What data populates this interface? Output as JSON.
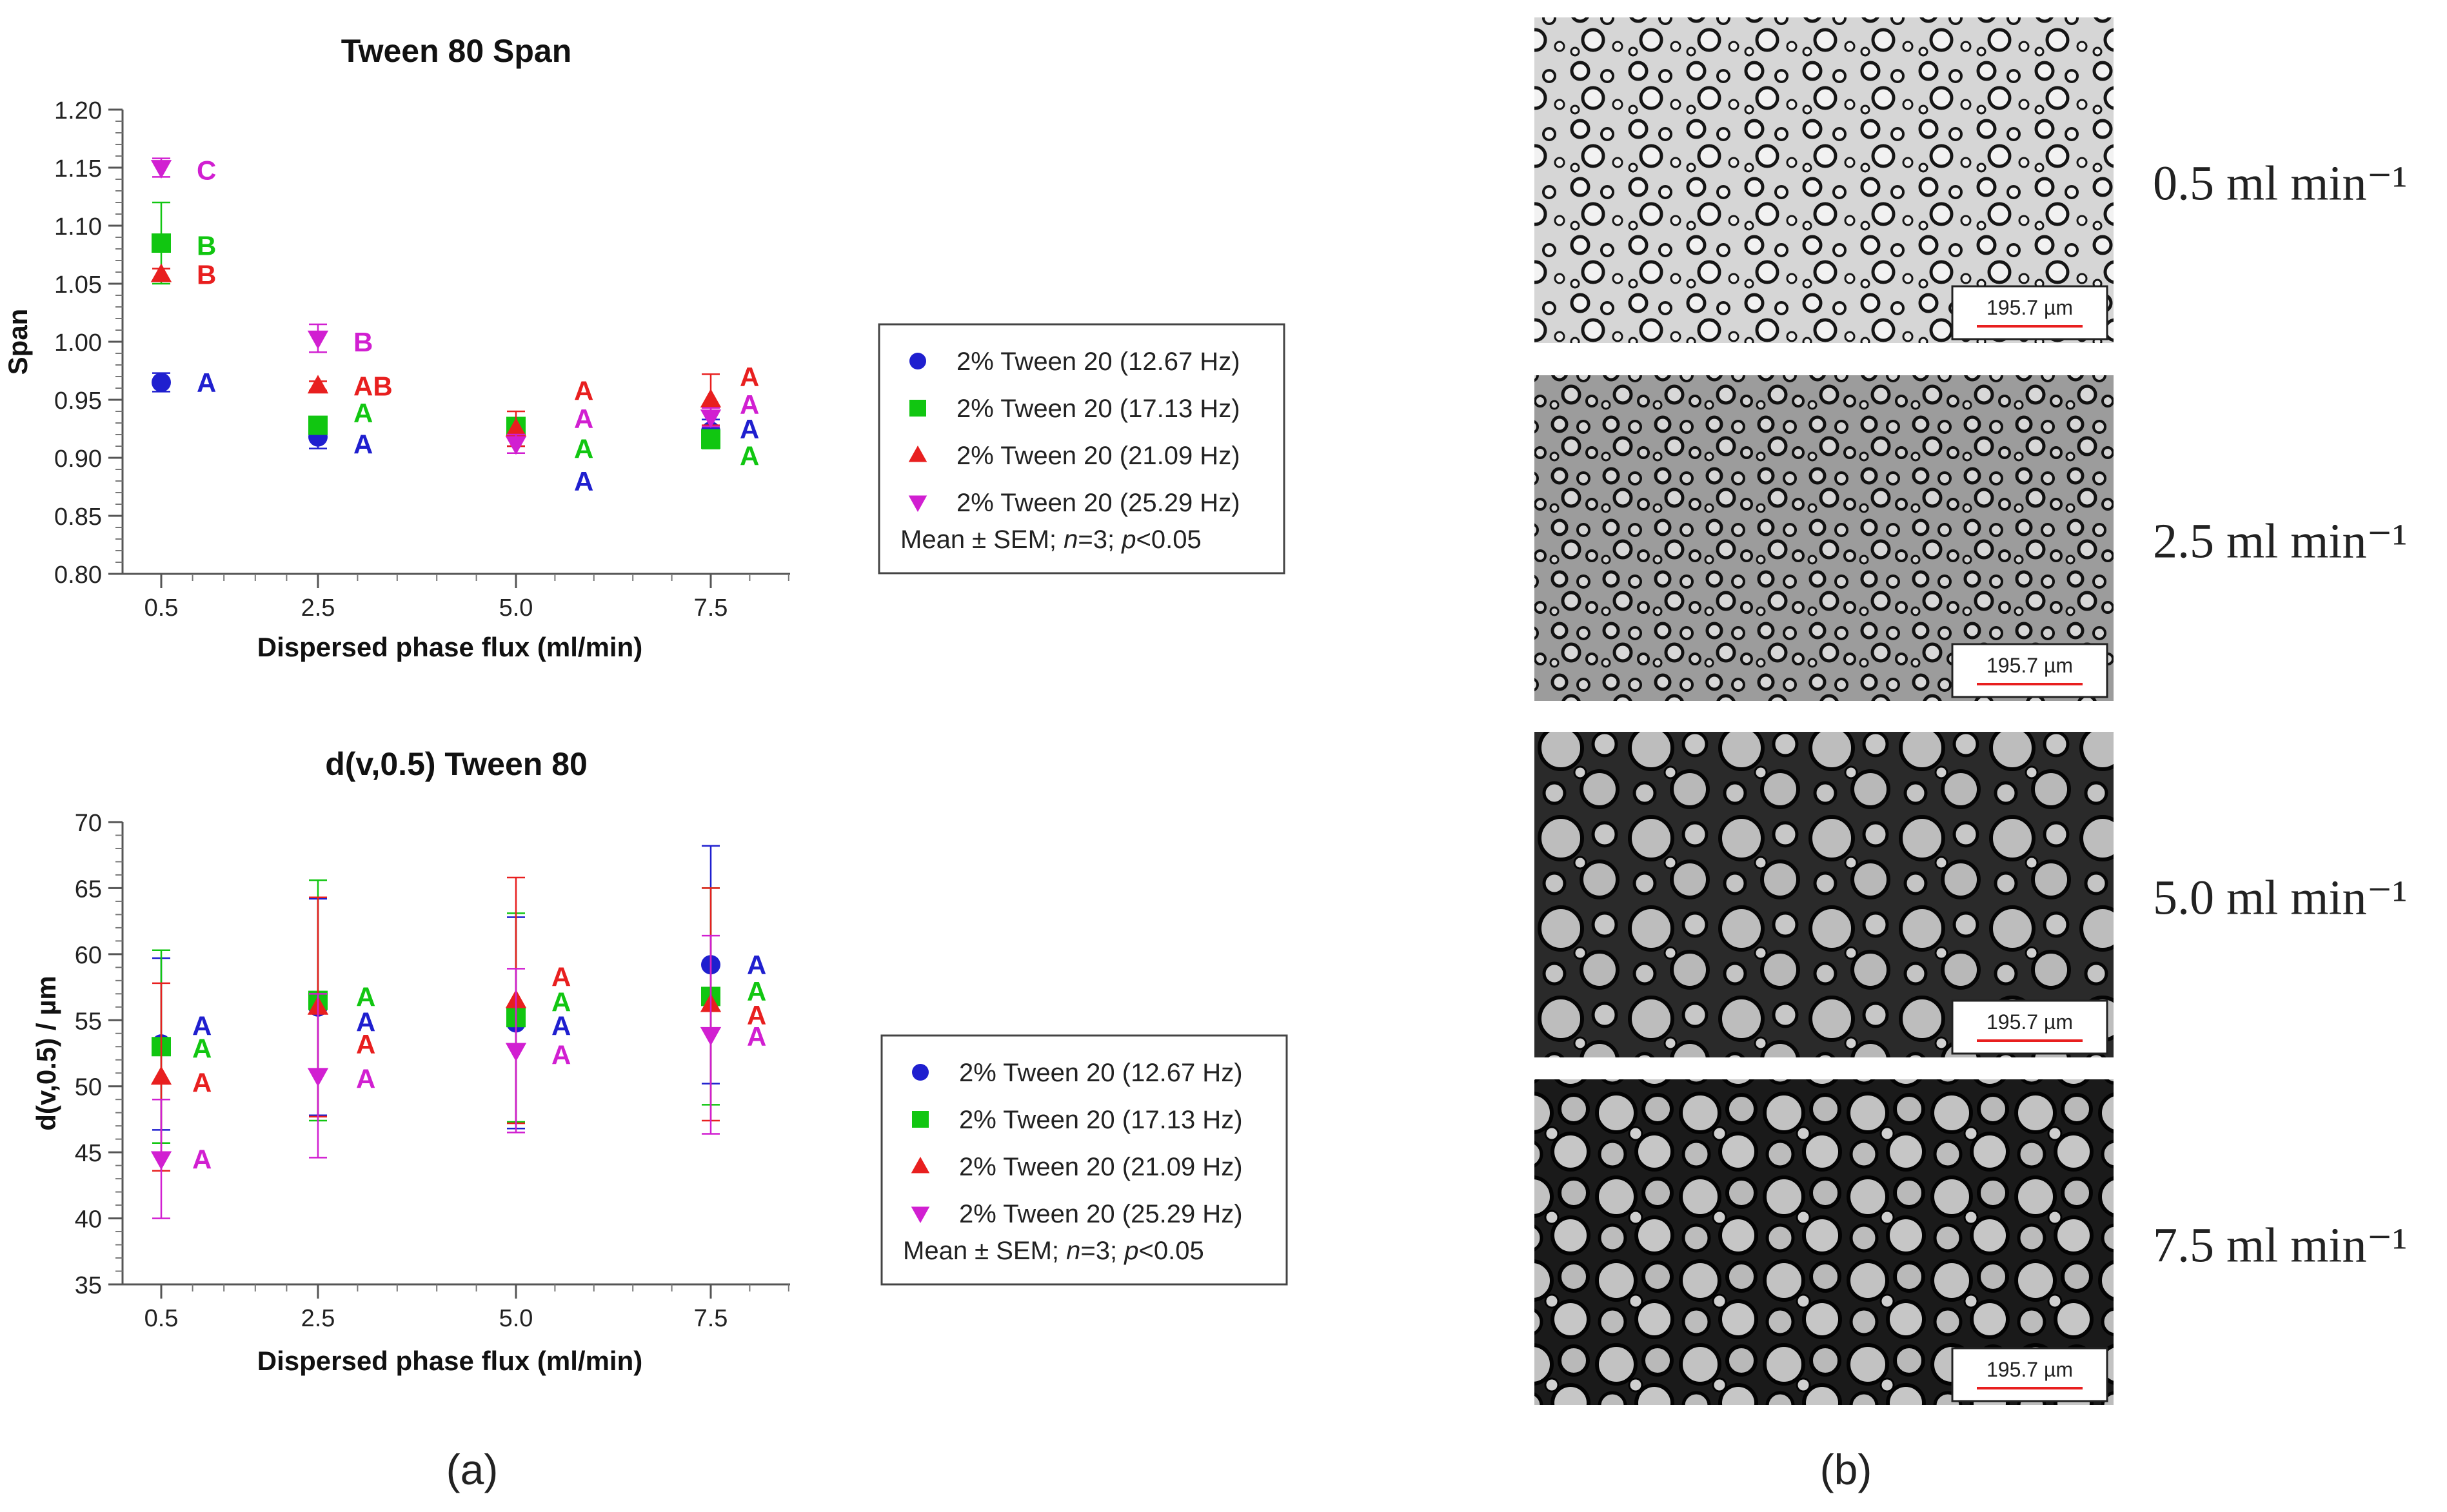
{
  "panels": {
    "a_label": "(a)",
    "b_label": "(b)"
  },
  "legend": {
    "entries": [
      "2% Tween 20 (12.67 Hz)",
      "2% Tween 20 (17.13 Hz)",
      "2% Tween 20 (21.09 Hz)",
      "2% Tween 20 (25.29 Hz)"
    ],
    "note_prefix": "Mean ± SEM; ",
    "note_n": "n",
    "note_mid": "=3; ",
    "note_p": "p",
    "note_suffix": "<0.05"
  },
  "colors": {
    "series": [
      "#1f1fcf",
      "#11c611",
      "#e81f1f",
      "#d11fd1"
    ],
    "scale_bar": "#e81f1f"
  },
  "micrographs": {
    "scale_label": "195.7 µm",
    "labels": [
      "0.5 ml min⁻¹",
      "2.5 ml min⁻¹",
      "5.0 ml min⁻¹",
      "7.5 ml min⁻¹"
    ]
  },
  "chart_data": [
    {
      "type": "scatter",
      "title": "Tween 80 Span",
      "xlabel": "Dispersed phase flux (ml/min)",
      "ylabel": "Span",
      "categories": [
        "0.5",
        "2.5",
        "5.0",
        "7.5"
      ],
      "ylim": [
        0.8,
        1.2
      ],
      "yticks": [
        "0.80",
        "0.85",
        "0.90",
        "0.95",
        "1.00",
        "1.05",
        "1.10",
        "1.15",
        "1.20"
      ],
      "grid": false,
      "series": [
        {
          "values": [
            0.965,
            0.918,
            0.92,
            0.923
          ],
          "err": [
            0.008,
            0.01,
            0.01,
            0.01
          ],
          "letters": [
            "A",
            "A",
            "A",
            "A"
          ],
          "letter_y": [
            0.965,
            0.912,
            0.88,
            0.925
          ],
          "marker": "circle"
        },
        {
          "values": [
            1.085,
            0.928,
            0.927,
            0.916
          ],
          "err": [
            0.035,
            0.005,
            0.005,
            0.008
          ],
          "letters": [
            "B",
            "A",
            "A",
            "A"
          ],
          "letter_y": [
            1.083,
            0.939,
            0.908,
            0.902
          ],
          "marker": "square"
        },
        {
          "values": [
            1.058,
            0.962,
            0.925,
            0.95
          ],
          "err": [
            0.005,
            0.004,
            0.015,
            0.022
          ],
          "letters": [
            "B",
            "AB",
            "A",
            "A"
          ],
          "letter_y": [
            1.058,
            0.962,
            0.958,
            0.97
          ],
          "marker": "triangle-up"
        },
        {
          "values": [
            1.15,
            1.003,
            0.912,
            0.935
          ],
          "err": [
            0.008,
            0.012,
            0.008,
            0.008
          ],
          "letters": [
            "C",
            "B",
            "A",
            "A"
          ],
          "letter_y": [
            1.148,
            1.0,
            0.934,
            0.946
          ],
          "marker": "triangle-down"
        }
      ]
    },
    {
      "type": "scatter",
      "title": "d(v,0.5) Tween 80",
      "xlabel": "Dispersed phase flux (ml/min)",
      "ylabel": "d(v,0.5) / µm",
      "categories": [
        "0.5",
        "2.5",
        "5.0",
        "7.5"
      ],
      "ylim": [
        35,
        70
      ],
      "yticks": [
        "35",
        "40",
        "45",
        "50",
        "55",
        "60",
        "65",
        "70"
      ],
      "grid": false,
      "series": [
        {
          "values": [
            53.2,
            56.0,
            54.8,
            59.2
          ],
          "err": [
            6.5,
            8.2,
            8.0,
            9.0
          ],
          "letters": [
            "A",
            "A",
            "A",
            "A"
          ],
          "letter_y": [
            54.6,
            54.9,
            54.6,
            59.2
          ],
          "marker": "circle"
        },
        {
          "values": [
            53.0,
            56.5,
            55.2,
            56.8
          ],
          "err": [
            7.3,
            9.1,
            7.9,
            8.2
          ],
          "letters": [
            "A",
            "A",
            "A",
            "A"
          ],
          "letter_y": [
            52.9,
            56.8,
            56.4,
            57.2
          ],
          "marker": "square"
        },
        {
          "values": [
            50.7,
            56.0,
            56.5,
            56.2
          ],
          "err": [
            7.1,
            8.3,
            9.3,
            8.8
          ],
          "letters": [
            "A",
            "A",
            "A",
            "A"
          ],
          "letter_y": [
            50.3,
            53.2,
            58.3,
            55.4
          ],
          "marker": "triangle-up"
        },
        {
          "values": [
            44.5,
            50.8,
            52.7,
            53.9
          ],
          "err": [
            4.5,
            6.2,
            6.2,
            7.5
          ],
          "letters": [
            "A",
            "A",
            "A",
            "A"
          ],
          "letter_y": [
            44.5,
            50.6,
            52.4,
            53.8
          ],
          "marker": "triangle-down"
        }
      ]
    }
  ]
}
